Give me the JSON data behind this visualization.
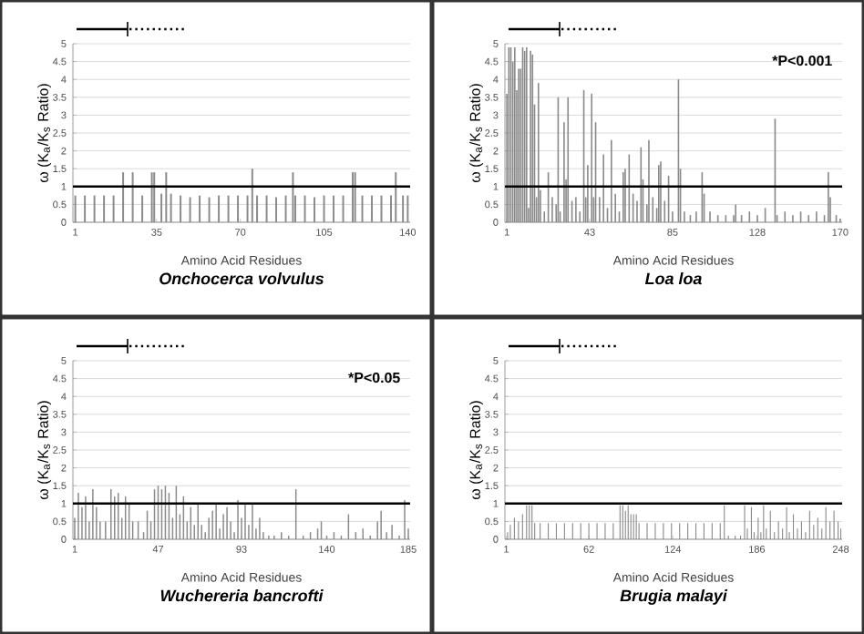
{
  "chart_data": [
    {
      "type": "bar",
      "title": "Onchocerca volvulus",
      "xlabel": "Amino Acid Residues",
      "ylabel": "ω (K$_{a}$/K$_{s}$ Ratio)",
      "color": "#8a8a8a",
      "grid": "y",
      "xlim": [
        0,
        141
      ],
      "ylim": [
        0,
        5
      ],
      "xticks": [
        1,
        35,
        70,
        105,
        140
      ],
      "yticks": [
        0,
        0.5,
        1,
        1.5,
        2,
        2.5,
        3,
        3.5,
        4,
        4.5,
        5
      ],
      "x": [
        1,
        5,
        9,
        13,
        17,
        21,
        25,
        29,
        33,
        34,
        37,
        39,
        41,
        45,
        49,
        53,
        57,
        61,
        65,
        69,
        73,
        75,
        77,
        81,
        85,
        89,
        92,
        93,
        97,
        101,
        105,
        109,
        113,
        117,
        118,
        121,
        125,
        129,
        133,
        135,
        138,
        140
      ],
      "values": [
        0.75,
        0.75,
        0.75,
        0.75,
        0.75,
        1.4,
        1.4,
        0.75,
        1.4,
        1.4,
        0.8,
        1.4,
        0.8,
        0.75,
        0.7,
        0.75,
        0.7,
        0.75,
        0.75,
        0.75,
        0.75,
        1.5,
        0.75,
        0.75,
        0.7,
        0.75,
        1.4,
        0.75,
        0.75,
        0.7,
        0.75,
        0.75,
        0.75,
        1.4,
        1.4,
        0.75,
        0.75,
        0.75,
        0.75,
        1.4,
        0.75,
        0.75
      ],
      "ref_lines": [
        {
          "axis": "y",
          "value": 1
        }
      ]
    },
    {
      "type": "bar",
      "title": "Loa loa",
      "xlabel": "Amino Acid Residues",
      "ylabel": "ω (K$_{a}$/K$_{s}$ Ratio)",
      "color": "#8a8a8a",
      "grid": "y",
      "xlim": [
        0,
        171
      ],
      "ylim": [
        0,
        5
      ],
      "xticks": [
        1,
        43,
        85,
        128,
        170
      ],
      "yticks": [
        0,
        0.5,
        1,
        1.5,
        2,
        2.5,
        3,
        3.5,
        4,
        4.5,
        5
      ],
      "x": [
        1,
        2,
        3,
        4,
        5,
        6,
        7,
        8,
        9,
        10,
        11,
        12,
        13,
        14,
        15,
        16,
        17,
        18,
        20,
        22,
        24,
        26,
        27,
        28,
        30,
        31,
        32,
        34,
        36,
        38,
        40,
        41,
        42,
        44,
        45,
        46,
        48,
        50,
        52,
        54,
        56,
        58,
        60,
        61,
        63,
        65,
        67,
        69,
        70,
        72,
        73,
        75,
        77,
        78,
        79,
        81,
        83,
        85,
        88,
        89,
        91,
        94,
        97,
        100,
        101,
        104,
        108,
        112,
        116,
        117,
        120,
        124,
        128,
        132,
        137,
        138,
        142,
        146,
        150,
        154,
        158,
        162,
        164,
        165,
        168,
        170
      ],
      "values": [
        3.6,
        4.9,
        4.9,
        4.5,
        4.9,
        3.7,
        4.3,
        4.3,
        4.9,
        4.8,
        4.9,
        0.4,
        4.8,
        4.7,
        3.3,
        0.7,
        3.9,
        0.9,
        0.3,
        1.4,
        0.7,
        0.5,
        3.5,
        0.3,
        2.8,
        1.2,
        3.5,
        0.6,
        0.7,
        0.3,
        3.7,
        0.7,
        1.6,
        3.6,
        0.7,
        2.8,
        0.7,
        1.9,
        0.4,
        2.3,
        0.8,
        0.3,
        1.4,
        1.5,
        1.9,
        0.8,
        0.6,
        2.1,
        1.2,
        0.5,
        2.3,
        0.7,
        0.4,
        1.6,
        1.7,
        0.6,
        1.3,
        0.3,
        4.0,
        1.5,
        0.3,
        0.2,
        0.3,
        1.4,
        0.8,
        0.3,
        0.2,
        0.2,
        0.2,
        0.5,
        0.2,
        0.3,
        0.2,
        0.4,
        2.9,
        0.2,
        0.3,
        0.2,
        0.3,
        0.2,
        0.3,
        0.2,
        1.4,
        0.7,
        0.2,
        0.1
      ],
      "ref_lines": [
        {
          "axis": "y",
          "value": 1
        }
      ],
      "annotations": [
        "*P<0.001"
      ]
    },
    {
      "type": "bar",
      "title": "Wuchereria bancrofti",
      "xlabel": "Amino Acid Residues",
      "ylabel": "ω (K$_{a}$/K$_{s}$ Ratio)",
      "color": "#8a8a8a",
      "grid": "y",
      "xlim": [
        0,
        186
      ],
      "ylim": [
        0,
        5
      ],
      "xticks": [
        1,
        47,
        93,
        140,
        185
      ],
      "yticks": [
        0,
        0.5,
        1,
        1.5,
        2,
        2.5,
        3,
        3.5,
        4,
        4.5,
        5
      ],
      "x": [
        1,
        3,
        5,
        7,
        9,
        11,
        13,
        15,
        18,
        21,
        23,
        25,
        27,
        29,
        31,
        33,
        36,
        39,
        41,
        43,
        45,
        47,
        49,
        51,
        53,
        55,
        57,
        59,
        61,
        63,
        65,
        67,
        69,
        71,
        73,
        75,
        77,
        79,
        81,
        83,
        85,
        87,
        89,
        91,
        93,
        95,
        97,
        99,
        101,
        103,
        105,
        108,
        111,
        115,
        119,
        123,
        127,
        131,
        135,
        137,
        140,
        144,
        148,
        152,
        156,
        160,
        164,
        168,
        170,
        173,
        176,
        180,
        183,
        185
      ],
      "values": [
        0.6,
        1.3,
        0.9,
        1.2,
        0.5,
        1.4,
        0.9,
        0.5,
        0.5,
        1.4,
        1.2,
        1.3,
        0.6,
        1.2,
        1.0,
        0.5,
        0.5,
        0.2,
        0.8,
        0.5,
        1.4,
        1.5,
        1.4,
        1.5,
        1.3,
        0.6,
        1.5,
        0.7,
        1.2,
        0.5,
        0.9,
        0.4,
        1.0,
        0.4,
        0.2,
        0.6,
        0.8,
        1.0,
        0.3,
        0.7,
        0.9,
        0.5,
        0.2,
        1.1,
        0.6,
        1.0,
        0.4,
        1.0,
        0.3,
        0.6,
        0.2,
        0.1,
        0.1,
        0.2,
        0.1,
        1.4,
        0.1,
        0.2,
        0.3,
        0.5,
        0.1,
        0.2,
        0.1,
        0.7,
        0.2,
        0.3,
        0.1,
        0.5,
        0.8,
        0.2,
        0.4,
        0.1,
        1.1,
        0.3
      ],
      "ref_lines": [
        {
          "axis": "y",
          "value": 1
        }
      ],
      "annotations": [
        "*P<0.05"
      ]
    },
    {
      "type": "bar",
      "title": "Brugia malayi",
      "xlabel": "Amino Acid Residues",
      "ylabel": "ω (K$_{a}$/K$_{s}$ Ratio)",
      "color": "#8a8a8a",
      "grid": "y",
      "xlim": [
        0,
        249
      ],
      "ylim": [
        0,
        5
      ],
      "xticks": [
        1,
        62,
        124,
        186,
        248
      ],
      "yticks": [
        0,
        0.5,
        1,
        1.5,
        2,
        2.5,
        3,
        3.5,
        4,
        4.5,
        5
      ],
      "x": [
        2,
        4,
        7,
        10,
        13,
        16,
        18,
        20,
        22,
        26,
        32,
        38,
        44,
        50,
        56,
        62,
        68,
        74,
        80,
        85,
        87,
        89,
        91,
        93,
        95,
        97,
        99,
        105,
        111,
        117,
        123,
        129,
        135,
        141,
        147,
        153,
        159,
        162,
        165,
        170,
        174,
        177,
        179,
        182,
        184,
        187,
        189,
        191,
        193,
        196,
        199,
        202,
        205,
        208,
        210,
        213,
        216,
        219,
        222,
        225,
        228,
        231,
        234,
        237,
        240,
        243,
        246,
        248
      ],
      "values": [
        0.2,
        0.4,
        0.6,
        0.5,
        0.7,
        0.95,
        0.95,
        0.95,
        0.45,
        0.45,
        0.45,
        0.45,
        0.45,
        0.45,
        0.45,
        0.45,
        0.45,
        0.45,
        0.45,
        0.95,
        0.95,
        0.8,
        0.95,
        0.7,
        0.7,
        0.7,
        0.45,
        0.45,
        0.45,
        0.45,
        0.45,
        0.45,
        0.45,
        0.45,
        0.45,
        0.45,
        0.45,
        0.95,
        0.1,
        0.1,
        0.1,
        0.95,
        0.3,
        0.9,
        0.2,
        0.6,
        0.2,
        0.95,
        0.3,
        0.8,
        0.2,
        0.5,
        0.3,
        0.9,
        0.2,
        0.7,
        0.3,
        0.5,
        0.2,
        0.8,
        0.4,
        0.6,
        0.3,
        0.9,
        0.5,
        0.8,
        0.5,
        0.3
      ],
      "ref_lines": [
        {
          "axis": "y",
          "value": 1
        }
      ]
    }
  ]
}
